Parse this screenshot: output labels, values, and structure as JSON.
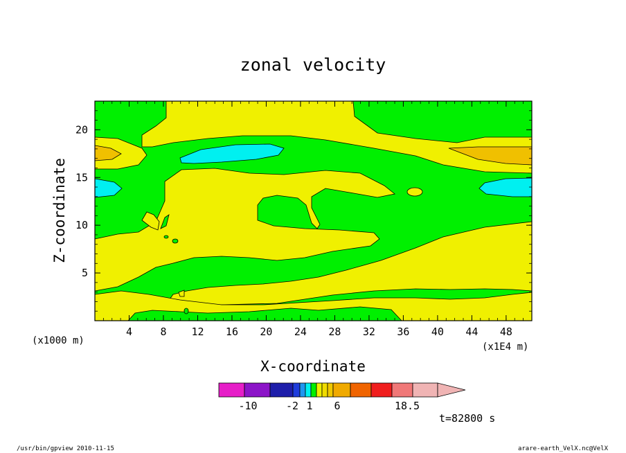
{
  "chart_data": {
    "type": "heatmap",
    "title": "zonal velocity",
    "xlabel": "X-coordinate",
    "ylabel": "Z-coordinate",
    "x_unit_label": "(x1E4 m)",
    "y_unit_label": "(x1000 m)",
    "x_ticks": [
      "4",
      "8",
      "12",
      "16",
      "20",
      "24",
      "28",
      "32",
      "36",
      "40",
      "44",
      "48"
    ],
    "y_ticks": [
      "5",
      "10",
      "15",
      "20"
    ],
    "xlim": [
      0,
      51
    ],
    "ylim": [
      0,
      23
    ],
    "colorbar": {
      "labels": [
        "-10",
        "-2",
        "1",
        "6",
        "18.5"
      ],
      "colors": [
        "#e61ec8",
        "#8c14c8",
        "#1e1eaa",
        "#1e3cdc",
        "#1e96f0",
        "#00f0f0",
        "#00f000",
        "#f0f000",
        "#f0dc00",
        "#f0c800",
        "#f0aa00",
        "#f06400",
        "#f01e1e",
        "#f07878",
        "#f0b4b4"
      ]
    },
    "fills": {
      "background": "#00f000",
      "yellow": "#f0f000",
      "cyan": "#00f0f0",
      "orange": "#f0c000"
    },
    "time_label": "t=82800 s"
  },
  "footer": {
    "left": "/usr/bin/gpview  2010-11-15",
    "right": "arare-earth_VelX.nc@VelX"
  }
}
